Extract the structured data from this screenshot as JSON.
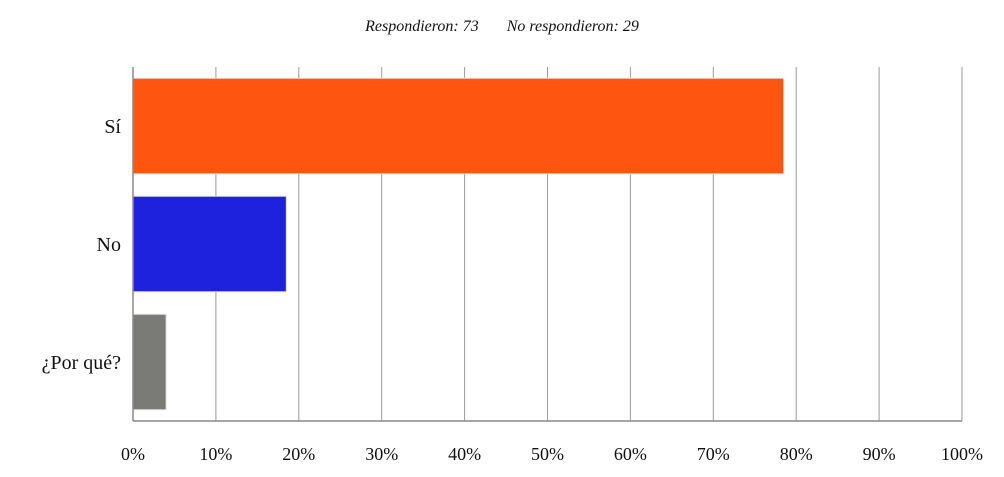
{
  "header": {
    "responded": "Respondieron: 73",
    "not_responded": "No respondieron: 29"
  },
  "chart_data": {
    "type": "bar",
    "orientation": "horizontal",
    "categories": [
      "Sí",
      "No",
      "¿Por qué?"
    ],
    "values": [
      78.5,
      18.5,
      4.0
    ],
    "colors": [
      "#fe5510",
      "#1e22dd",
      "#7a7a76"
    ],
    "xlim": [
      0,
      100
    ],
    "ticks": [
      "0%",
      "10%",
      "20%",
      "30%",
      "40%",
      "50%",
      "60%",
      "70%",
      "80%",
      "90%",
      "100%"
    ],
    "grid": true
  }
}
